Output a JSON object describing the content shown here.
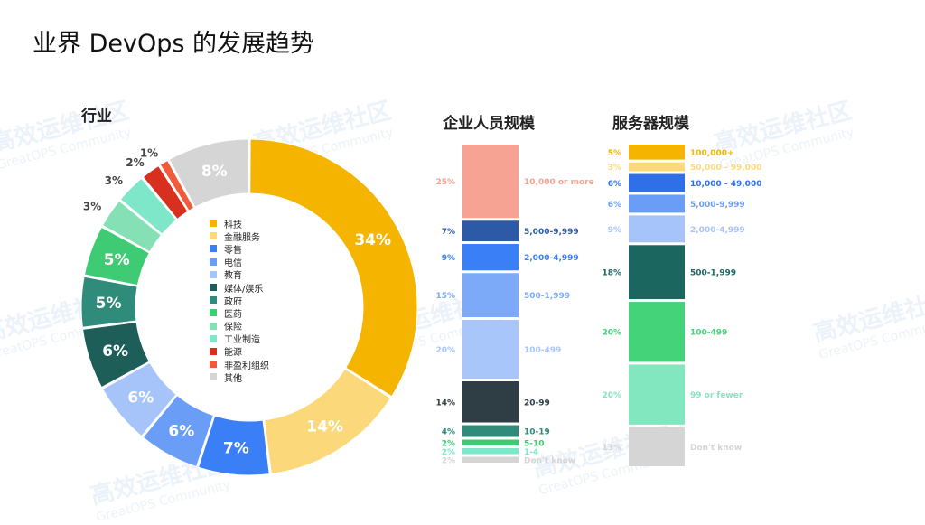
{
  "page": {
    "title": "业界 DevOps 的发展趋势"
  },
  "watermark": {
    "text": "高效运维社区",
    "subtext": "GreatOPS Community"
  },
  "chart_data": [
    {
      "type": "pie",
      "title": "行业",
      "style": "donut",
      "categories": [
        "科技",
        "金融服务",
        "零售",
        "电信",
        "教育",
        "媒体/娱乐",
        "政府",
        "医药",
        "保险",
        "工业制造",
        "能源",
        "非盈利组织",
        "其他"
      ],
      "values": [
        34,
        14,
        7,
        6,
        6,
        6,
        5,
        5,
        3,
        3,
        2,
        1,
        8
      ],
      "labels": [
        "34%",
        "14%",
        "7%",
        "6%",
        "6%",
        "6%",
        "5%",
        "5%",
        "3%",
        "3%",
        "2%",
        "1%",
        "8%"
      ],
      "colors": [
        "#f5b400",
        "#fbd97b",
        "#3a7ff5",
        "#6a9ef6",
        "#a7c4fa",
        "#1e5e59",
        "#2f8b7a",
        "#3ecb74",
        "#86e0b6",
        "#7ee6c9",
        "#d7301f",
        "#f15b3c",
        "#d5d5d5"
      ],
      "legend": "center"
    },
    {
      "type": "bar",
      "orientation": "stacked-vertical",
      "title": "企业人员规模",
      "categories": [
        "10,000 or more",
        "5,000-9,999",
        "2,000-4,999",
        "500-1,999",
        "100-499",
        "20-99",
        "10-19",
        "5-10",
        "1-4",
        "Don't know"
      ],
      "values": [
        25,
        7,
        9,
        15,
        20,
        14,
        4,
        2,
        2,
        2
      ],
      "labels": [
        "25%",
        "7%",
        "9%",
        "15%",
        "20%",
        "14%",
        "4%",
        "2%",
        "2%",
        "2%"
      ],
      "colors": [
        "#f7a394",
        "#2c5aa6",
        "#3a7ff5",
        "#7daaf8",
        "#a9c6fb",
        "#2f3e44",
        "#2f8b7a",
        "#3ecb74",
        "#7ee6c9",
        "#d5d5d5"
      ]
    },
    {
      "type": "bar",
      "orientation": "stacked-vertical",
      "title": "服务器规模",
      "categories": [
        "100,000+",
        "50,000 - 99,000",
        "10,000 - 49,000",
        "5,000-9,999",
        "2,000-4,999",
        "500-1,999",
        "100-499",
        "99 or fewer",
        "Don't know"
      ],
      "values": [
        5,
        3,
        6,
        6,
        9,
        18,
        20,
        20,
        13
      ],
      "labels": [
        "5%",
        "3%",
        "6%",
        "6%",
        "9%",
        "18%",
        "20%",
        "20%",
        "13%"
      ],
      "colors": [
        "#f5b400",
        "#fbd97b",
        "#2f6fe8",
        "#6a9ef6",
        "#a7c4fa",
        "#1c6660",
        "#45d37a",
        "#82e6bf",
        "#d5d5d5"
      ]
    }
  ]
}
